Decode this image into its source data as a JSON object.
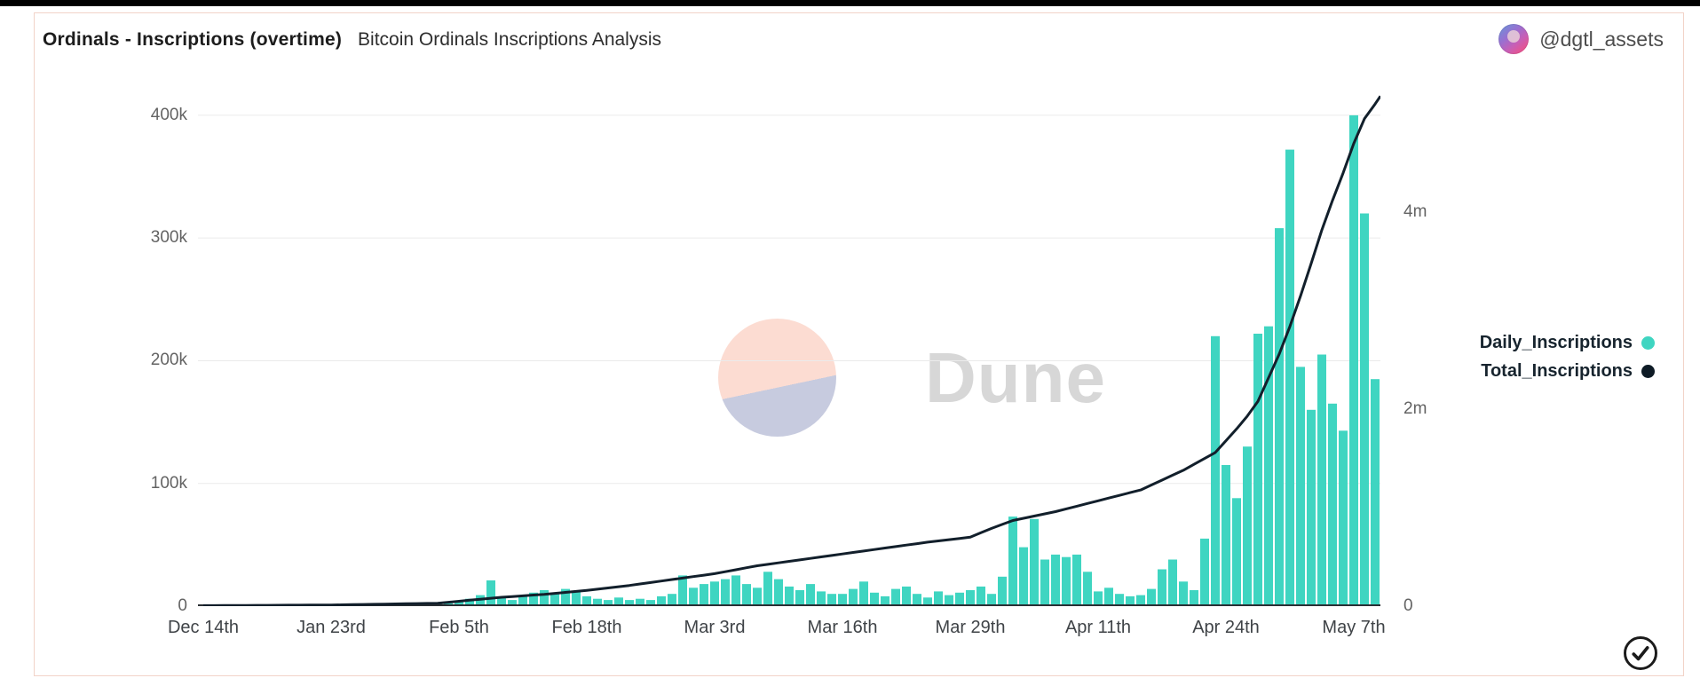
{
  "header": {
    "title": "Ordinals - Inscriptions (overtime)",
    "subtitle": "Bitcoin Ordinals Inscriptions Analysis",
    "author_handle": "@dgtl_assets"
  },
  "watermark": {
    "text": "Dune"
  },
  "legend": [
    {
      "label": "Daily_Inscriptions",
      "color": "#3fd5c1"
    },
    {
      "label": "Total_Inscriptions",
      "color": "#0e1b26"
    }
  ],
  "chart_data": {
    "type": "bar",
    "title": "Ordinals - Inscriptions (overtime)",
    "subtitle": "Bitcoin Ordinals Inscriptions Analysis",
    "x_tick_labels": [
      "Dec 14th",
      "Jan 23rd",
      "Feb 5th",
      "Feb 18th",
      "Mar 3rd",
      "Mar 16th",
      "Mar 29th",
      "Apr 11th",
      "Apr 24th",
      "May 7th"
    ],
    "x_tick_indices": [
      0,
      12,
      24,
      36,
      48,
      60,
      72,
      84,
      96,
      108
    ],
    "left_axis": {
      "tick_labels": [
        "0",
        "100k",
        "200k",
        "300k",
        "400k"
      ],
      "tick_values_k": [
        0,
        100,
        200,
        300,
        400
      ],
      "max_k": 418,
      "grid": true
    },
    "right_axis": {
      "tick_labels": [
        "0",
        "2m",
        "4m"
      ],
      "tick_values_m": [
        0,
        2,
        4
      ],
      "max_m": 5.21
    },
    "legend_position": "right",
    "series": [
      {
        "name": "Daily_Inscriptions",
        "type": "bar",
        "unit": "thousand inscriptions per day",
        "color": "#3fd5c1",
        "values": [
          0.4,
          0.6,
          0.5,
          0.4,
          0.7,
          0.5,
          0.6,
          0.8,
          0.6,
          0.5,
          0.8,
          1.0,
          0.8,
          0.6,
          1.1,
          0.9,
          0.7,
          1.0,
          1.3,
          1.1,
          0.9,
          1.4,
          1.8,
          2.4,
          4,
          6,
          9,
          21,
          7,
          5,
          8,
          11,
          13,
          10,
          14,
          12,
          8,
          6,
          5,
          7,
          5,
          6,
          5,
          8,
          10,
          25,
          15,
          18,
          20,
          22,
          25,
          18,
          15,
          28,
          22,
          16,
          13,
          18,
          12,
          10,
          10,
          14,
          20,
          11,
          8,
          14,
          16,
          10,
          7,
          12,
          9,
          11,
          13,
          16,
          10,
          24,
          73,
          48,
          71,
          38,
          42,
          40,
          42,
          28,
          12,
          15,
          10,
          8,
          9,
          14,
          30,
          38,
          20,
          13,
          55,
          220,
          115,
          88,
          130,
          222,
          228,
          308,
          372,
          195,
          160,
          205,
          165,
          143,
          400,
          320,
          185
        ]
      },
      {
        "name": "Total_Inscriptions",
        "type": "line",
        "unit": "million inscriptions (cumulative)",
        "color": "#121f2b",
        "anchors_index_value_m": [
          [
            0,
            0.005
          ],
          [
            12,
            0.012
          ],
          [
            22,
            0.03
          ],
          [
            24,
            0.05
          ],
          [
            26,
            0.07
          ],
          [
            28,
            0.09
          ],
          [
            32,
            0.12
          ],
          [
            36,
            0.16
          ],
          [
            40,
            0.21
          ],
          [
            44,
            0.27
          ],
          [
            48,
            0.33
          ],
          [
            52,
            0.41
          ],
          [
            56,
            0.47
          ],
          [
            60,
            0.53
          ],
          [
            64,
            0.59
          ],
          [
            68,
            0.65
          ],
          [
            72,
            0.7
          ],
          [
            74,
            0.79
          ],
          [
            76,
            0.87
          ],
          [
            80,
            0.96
          ],
          [
            84,
            1.07
          ],
          [
            88,
            1.18
          ],
          [
            90,
            1.28
          ],
          [
            92,
            1.38
          ],
          [
            94,
            1.5
          ],
          [
            95,
            1.56
          ],
          [
            96,
            1.68
          ],
          [
            97,
            1.8
          ],
          [
            98,
            1.93
          ],
          [
            99,
            2.08
          ],
          [
            100,
            2.32
          ],
          [
            101,
            2.56
          ],
          [
            102,
            2.84
          ],
          [
            103,
            3.15
          ],
          [
            104,
            3.48
          ],
          [
            105,
            3.82
          ],
          [
            106,
            4.12
          ],
          [
            107,
            4.4
          ],
          [
            108,
            4.7
          ],
          [
            109,
            4.95
          ],
          [
            110,
            5.1
          ],
          [
            111,
            5.18
          ]
        ]
      }
    ]
  },
  "colors": {
    "bar": "#3fd5c1",
    "line": "#121f2b",
    "grid": "#ebebeb",
    "baseline": "#2a2f33",
    "card_border": "#f2d3c8",
    "watermark_text": "#d7d7d7",
    "watermark_circle_top": "#fcdcd2",
    "watermark_circle_bottom": "#c7cbdf"
  },
  "footer": {
    "verified_icon": "check-circle"
  }
}
